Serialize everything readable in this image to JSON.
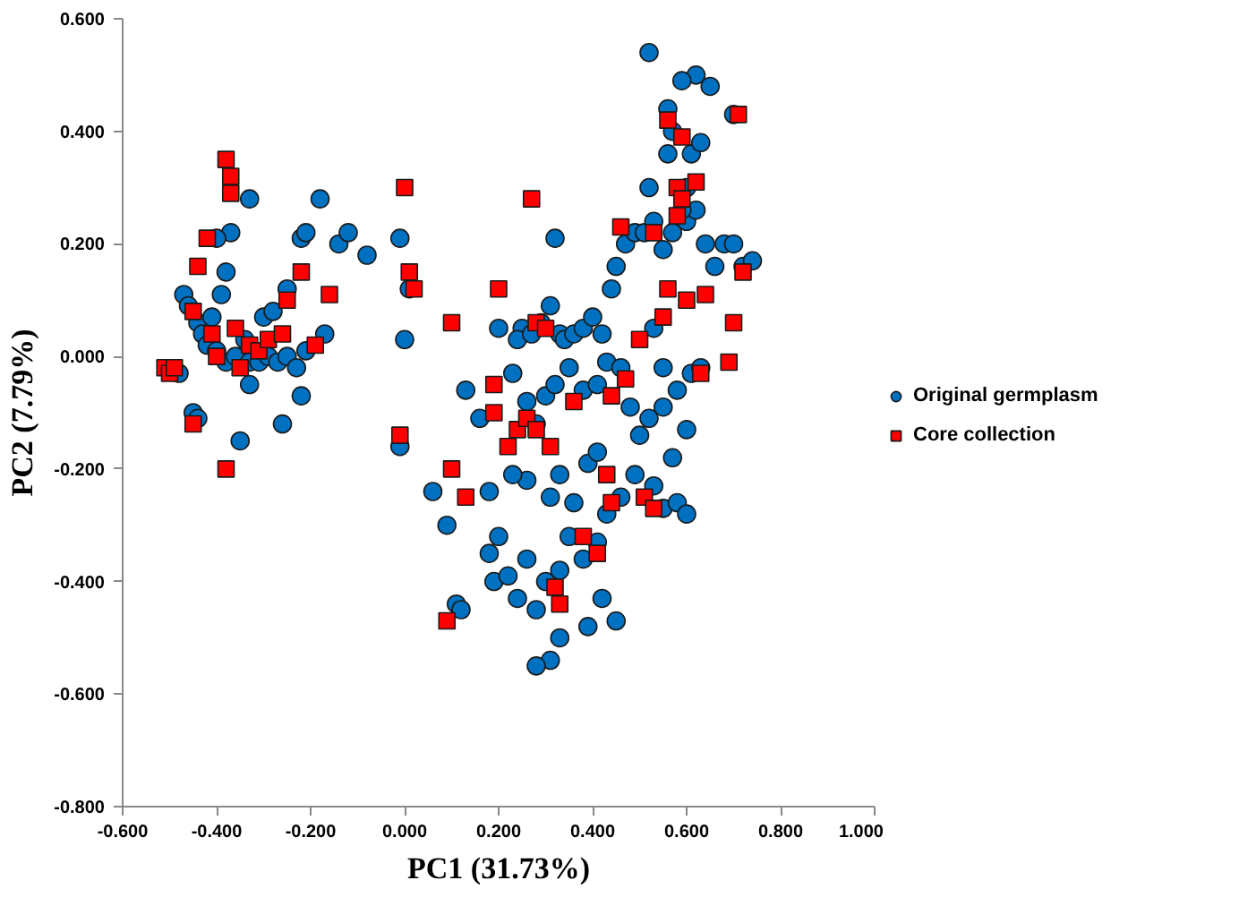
{
  "chart_data": {
    "type": "scatter",
    "xlabel": "PC1 (31.73%)",
    "ylabel": "PC2 (7.79%)",
    "xlim": [
      -0.6,
      1.0
    ],
    "ylim": [
      -0.8,
      0.6
    ],
    "xticks": [
      {
        "value": -0.6,
        "label": "-0.600"
      },
      {
        "value": -0.4,
        "label": "-0.400"
      },
      {
        "value": -0.2,
        "label": "-0.200"
      },
      {
        "value": 0,
        "label": "0.000"
      },
      {
        "value": 0.2,
        "label": "0.200"
      },
      {
        "value": 0.4,
        "label": "0.400"
      },
      {
        "value": 0.6,
        "label": "0.600"
      },
      {
        "value": 0.8,
        "label": "0.800"
      },
      {
        "value": 1.0,
        "label": "1.000"
      }
    ],
    "yticks": [
      {
        "value": -0.8,
        "label": "-0.800"
      },
      {
        "value": -0.6,
        "label": "-0.600"
      },
      {
        "value": -0.4,
        "label": "-0.400"
      },
      {
        "value": -0.2,
        "label": "-0.200"
      },
      {
        "value": 0,
        "label": "0.000"
      },
      {
        "value": 0.2,
        "label": "0.200"
      },
      {
        "value": 0.4,
        "label": "0.400"
      },
      {
        "value": 0.6,
        "label": "0.600"
      }
    ],
    "grid": false,
    "legend": "right",
    "series": [
      {
        "name": "Original germplasm",
        "color": "#0070c0",
        "marker": "circle",
        "x": [
          -0.47,
          -0.46,
          -0.44,
          -0.43,
          -0.42,
          -0.4,
          -0.38,
          -0.36,
          -0.34,
          -0.33,
          -0.31,
          -0.29,
          -0.27,
          -0.25,
          -0.23,
          -0.21,
          -0.3,
          -0.28,
          -0.25,
          -0.22,
          -0.21,
          -0.18,
          -0.33,
          -0.37,
          -0.4,
          -0.38,
          -0.41,
          -0.39,
          -0.48,
          -0.45,
          -0.44,
          -0.35,
          -0.33,
          -0.26,
          -0.22,
          -0.17,
          -0.14,
          -0.08,
          -0.12,
          -0.01,
          0.01,
          0.0,
          -0.01,
          0.06,
          0.09,
          0.11,
          0.12,
          0.13,
          0.16,
          0.18,
          0.18,
          0.19,
          0.2,
          0.2,
          0.25,
          0.24,
          0.27,
          0.29,
          0.31,
          0.33,
          0.34,
          0.36,
          0.38,
          0.4,
          0.42,
          0.44,
          0.45,
          0.47,
          0.49,
          0.51,
          0.53,
          0.55,
          0.57,
          0.6,
          0.62,
          0.64,
          0.66,
          0.68,
          0.7,
          0.72,
          0.74,
          0.7,
          0.65,
          0.62,
          0.59,
          0.52,
          0.56,
          0.57,
          0.56,
          0.61,
          0.63,
          0.6,
          0.59,
          0.23,
          0.26,
          0.28,
          0.3,
          0.32,
          0.35,
          0.38,
          0.41,
          0.43,
          0.46,
          0.48,
          0.5,
          0.52,
          0.55,
          0.58,
          0.61,
          0.63,
          0.6,
          0.57,
          0.53,
          0.55,
          0.58,
          0.6,
          0.49,
          0.46,
          0.43,
          0.41,
          0.38,
          0.35,
          0.33,
          0.3,
          0.28,
          0.31,
          0.28,
          0.33,
          0.45,
          0.42,
          0.39,
          0.22,
          0.24,
          0.26,
          0.31,
          0.33,
          0.36,
          0.39,
          0.41,
          0.26,
          0.23,
          0.32,
          0.52,
          0.53,
          0.55
        ],
        "values": [
          0.11,
          0.09,
          0.06,
          0.04,
          0.02,
          0.01,
          -0.01,
          0.0,
          0.03,
          -0.01,
          -0.01,
          0.0,
          -0.01,
          0.0,
          -0.02,
          0.01,
          0.07,
          0.08,
          0.12,
          0.21,
          0.22,
          0.28,
          0.28,
          0.22,
          0.21,
          0.15,
          0.07,
          0.11,
          -0.03,
          -0.1,
          -0.11,
          -0.15,
          -0.05,
          -0.12,
          -0.07,
          0.04,
          0.2,
          0.18,
          0.22,
          0.21,
          0.12,
          0.03,
          -0.16,
          -0.24,
          -0.3,
          -0.44,
          -0.45,
          -0.06,
          -0.11,
          -0.24,
          -0.35,
          -0.4,
          -0.32,
          0.05,
          0.05,
          0.03,
          0.04,
          0.06,
          0.09,
          0.04,
          0.03,
          0.04,
          0.05,
          0.07,
          0.04,
          0.12,
          0.16,
          0.2,
          0.22,
          0.22,
          0.24,
          0.19,
          0.22,
          0.24,
          0.26,
          0.2,
          0.16,
          0.2,
          0.2,
          0.16,
          0.17,
          0.43,
          0.48,
          0.5,
          0.49,
          0.54,
          0.44,
          0.4,
          0.36,
          0.36,
          0.38,
          0.3,
          0.26,
          -0.03,
          -0.08,
          -0.12,
          -0.07,
          -0.05,
          -0.02,
          -0.06,
          -0.05,
          -0.01,
          -0.02,
          -0.09,
          -0.14,
          -0.11,
          -0.09,
          -0.06,
          -0.03,
          -0.02,
          -0.13,
          -0.18,
          -0.23,
          -0.27,
          -0.26,
          -0.28,
          -0.21,
          -0.25,
          -0.28,
          -0.33,
          -0.36,
          -0.32,
          -0.38,
          -0.4,
          -0.45,
          -0.54,
          -0.55,
          -0.5,
          -0.47,
          -0.43,
          -0.48,
          -0.39,
          -0.43,
          -0.36,
          -0.25,
          -0.21,
          -0.26,
          -0.19,
          -0.17,
          -0.22,
          -0.21,
          0.21,
          0.3,
          0.05,
          -0.02
        ]
      },
      {
        "name": "Core collection",
        "color": "#ff0000",
        "marker": "square",
        "x": [
          -0.51,
          -0.5,
          -0.49,
          -0.45,
          -0.45,
          -0.44,
          -0.42,
          -0.41,
          -0.4,
          -0.38,
          -0.38,
          -0.37,
          -0.37,
          -0.36,
          -0.35,
          -0.33,
          -0.31,
          -0.29,
          -0.26,
          -0.25,
          -0.22,
          -0.19,
          -0.16,
          -0.01,
          0.0,
          0.01,
          0.02,
          0.09,
          0.1,
          0.1,
          0.13,
          0.19,
          0.19,
          0.2,
          0.22,
          0.24,
          0.26,
          0.27,
          0.28,
          0.28,
          0.3,
          0.31,
          0.32,
          0.33,
          0.36,
          0.38,
          0.41,
          0.43,
          0.44,
          0.44,
          0.46,
          0.47,
          0.5,
          0.51,
          0.53,
          0.53,
          0.55,
          0.56,
          0.56,
          0.58,
          0.58,
          0.59,
          0.59,
          0.6,
          0.62,
          0.63,
          0.64,
          0.69,
          0.7,
          0.71,
          0.72
        ],
        "values": [
          -0.02,
          -0.03,
          -0.02,
          -0.12,
          0.08,
          0.16,
          0.21,
          0.04,
          0.0,
          -0.2,
          0.35,
          0.32,
          0.29,
          0.05,
          -0.02,
          0.02,
          0.01,
          0.03,
          0.04,
          0.1,
          0.15,
          0.02,
          0.11,
          -0.14,
          0.3,
          0.15,
          0.12,
          -0.47,
          -0.2,
          0.06,
          -0.25,
          -0.05,
          -0.1,
          0.12,
          -0.16,
          -0.13,
          -0.11,
          0.28,
          0.06,
          -0.13,
          0.05,
          -0.16,
          -0.41,
          -0.44,
          -0.08,
          -0.32,
          -0.35,
          -0.21,
          -0.26,
          -0.07,
          0.23,
          -0.04,
          0.03,
          -0.25,
          -0.27,
          0.22,
          0.07,
          0.12,
          0.42,
          0.3,
          0.25,
          0.28,
          0.39,
          0.1,
          0.31,
          -0.03,
          0.11,
          -0.01,
          0.06,
          0.43,
          0.15
        ]
      }
    ]
  }
}
